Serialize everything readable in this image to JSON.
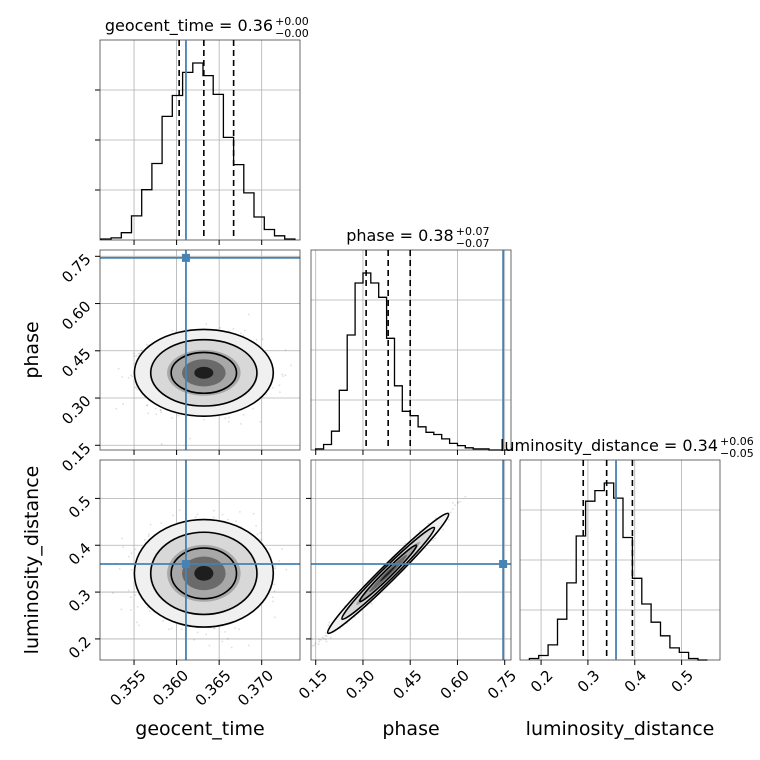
{
  "chart_data": {
    "type": "corner",
    "grid": true,
    "params": [
      {
        "key": "geocent_time",
        "axis_label": "geocent_time",
        "title": {
          "label": "geocent_time = 0.36",
          "sup": "+0.00",
          "sub": "−0.00"
        },
        "range": [
          0.351,
          0.3745
        ],
        "ticks": [
          0.355,
          0.36,
          0.365,
          0.37
        ],
        "tick_labels": [
          "0.355",
          "0.360",
          "0.365",
          "0.370"
        ],
        "injection": 0.3611,
        "quantiles": [
          0.3603,
          0.3632,
          0.3667
        ],
        "hist": {
          "edges": [
            0.3511,
            0.3523,
            0.3535,
            0.3547,
            0.3559,
            0.3571,
            0.3583,
            0.3595,
            0.3607,
            0.3619,
            0.3631,
            0.3643,
            0.3655,
            0.3667,
            0.3679,
            0.3691,
            0.3703,
            0.3715,
            0.3727,
            0.3739
          ],
          "counts": [
            1,
            2,
            7,
            23,
            48,
            73,
            118,
            138,
            160,
            169,
            157,
            139,
            98,
            72,
            45,
            22,
            10,
            4,
            1
          ]
        }
      },
      {
        "key": "phase",
        "axis_label": "phase",
        "title": {
          "label": "phase = 0.38",
          "sup": "+0.07",
          "sub": "−0.07"
        },
        "range": [
          0.135,
          0.77
        ],
        "ticks": [
          0.15,
          0.3,
          0.45,
          0.6,
          0.75
        ],
        "tick_labels": [
          "0.15",
          "0.30",
          "0.45",
          "0.60",
          "0.75"
        ],
        "injection": 0.745,
        "quantiles": [
          0.31,
          0.38,
          0.45
        ],
        "hist": {
          "edges": [
            0.15,
            0.175,
            0.2,
            0.225,
            0.25,
            0.275,
            0.3,
            0.325,
            0.35,
            0.375,
            0.4,
            0.425,
            0.45,
            0.475,
            0.5,
            0.525,
            0.55,
            0.575,
            0.6,
            0.625,
            0.65,
            0.675,
            0.7,
            0.725,
            0.75,
            0.775
          ],
          "counts": [
            1,
            5,
            17,
            54,
            104,
            151,
            160,
            151,
            138,
            101,
            58,
            35,
            31,
            21,
            16,
            14,
            10,
            6,
            4,
            2,
            1,
            1,
            0,
            0,
            0
          ]
        }
      },
      {
        "key": "luminosity_distance",
        "axis_label": "luminosity_distance",
        "title": {
          "label": "luminosity_distance = 0.34",
          "sup": "+0.06",
          "sub": "−0.05"
        },
        "range": [
          0.155,
          0.582
        ],
        "ticks": [
          0.2,
          0.3,
          0.4,
          0.5
        ],
        "tick_labels": [
          "0.2",
          "0.3",
          "0.4",
          "0.5"
        ],
        "injection": 0.36,
        "quantiles": [
          0.29,
          0.34,
          0.395
        ],
        "hist": {
          "edges": [
            0.175,
            0.195,
            0.215,
            0.235,
            0.255,
            0.275,
            0.295,
            0.315,
            0.335,
            0.355,
            0.375,
            0.395,
            0.415,
            0.435,
            0.455,
            0.475,
            0.495,
            0.515,
            0.535,
            0.555
          ],
          "counts": [
            1,
            3,
            10,
            27,
            51,
            82,
            105,
            112,
            117,
            107,
            81,
            54,
            37,
            25,
            16,
            8,
            5,
            1,
            0
          ]
        }
      }
    ],
    "pairs": [
      {
        "x": "geocent_time",
        "y": "phase",
        "center": [
          0.3632,
          0.38
        ],
        "spread": [
          0.0032,
          0.054
        ],
        "rho": 0.0
      },
      {
        "x": "geocent_time",
        "y": "luminosity_distance",
        "center": [
          0.3632,
          0.34
        ],
        "spread": [
          0.0032,
          0.045
        ],
        "rho": 0.0
      },
      {
        "x": "phase",
        "y": "luminosity_distance",
        "center": [
          0.38,
          0.34
        ],
        "spread": [
          0.075,
          0.05
        ],
        "rho": 0.985
      }
    ],
    "colors": {
      "injection": "#4682b4",
      "hist": "#000000",
      "grid": "#b0b0b0"
    }
  }
}
